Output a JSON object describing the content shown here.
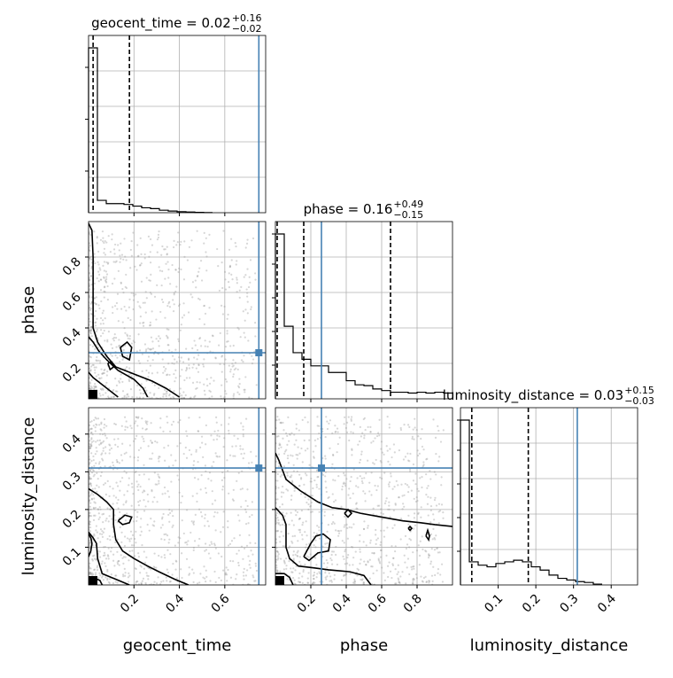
{
  "chart_data": {
    "type": "corner",
    "parameters": [
      "geocent_time",
      "phase",
      "luminosity_distance"
    ],
    "axis_labels": {
      "geocent_time": "geocent_time",
      "phase": "phase",
      "luminosity_distance": "luminosity_distance"
    },
    "ranges": {
      "geocent_time": [
        0.0,
        0.78
      ],
      "phase": [
        0.0,
        1.0
      ],
      "luminosity_distance": [
        0.0,
        0.47
      ]
    },
    "ticks": {
      "geocent_time": [
        0.2,
        0.4,
        0.6
      ],
      "phase": [
        0.2,
        0.4,
        0.6,
        0.8
      ],
      "luminosity_distance": [
        0.1,
        0.2,
        0.3,
        0.4
      ]
    },
    "tick_labels": {
      "geocent_time": [
        "0.2",
        "0.4",
        "0.6"
      ],
      "phase": [
        "0.2",
        "0.4",
        "0.6",
        "0.8"
      ],
      "luminosity_distance": [
        "0.1",
        "0.2",
        "0.3",
        "0.4"
      ]
    },
    "truths": {
      "geocent_time": 0.75,
      "phase": 0.26,
      "luminosity_distance": 0.31
    },
    "titles": [
      {
        "param": "geocent_time",
        "text": "geocent_time = 0.02",
        "sup": "+0.16",
        "sub": "−0.02"
      },
      {
        "param": "phase",
        "text": "phase = 0.16",
        "sup": "+0.49",
        "sub": "−0.15"
      },
      {
        "param": "luminosity_distance",
        "text": "luminosity_distance = 0.03",
        "sup": "+0.15",
        "sub": "−0.03"
      }
    ],
    "quantiles": {
      "geocent_time": [
        0.02,
        0.18
      ],
      "phase": [
        0.01,
        0.16,
        0.65
      ],
      "luminosity_distance": [
        0.03,
        0.18
      ]
    },
    "histograms": {
      "geocent_time": {
        "edges": [
          0.0,
          0.039,
          0.078,
          0.117,
          0.156,
          0.195,
          0.234,
          0.273,
          0.312,
          0.351,
          0.39,
          0.429,
          0.468,
          0.507,
          0.546
        ],
        "counts": [
          100,
          7.5,
          5.5,
          5.5,
          5,
          4,
          3,
          2.5,
          1.5,
          1,
          0.6,
          0.4,
          0.2,
          0.1
        ]
      },
      "phase": {
        "edges": [
          0.0,
          0.05,
          0.1,
          0.15,
          0.2,
          0.25,
          0.3,
          0.35,
          0.4,
          0.45,
          0.5,
          0.55,
          0.6,
          0.65,
          0.7,
          0.75,
          0.8,
          0.85,
          0.9,
          0.95,
          1.0
        ],
        "counts": [
          100,
          44,
          28,
          24,
          20,
          20,
          16,
          16,
          11,
          8.5,
          8,
          6,
          5,
          4,
          4,
          3.5,
          4,
          3.5,
          4,
          3.5
        ]
      },
      "luminosity_distance": {
        "edges": [
          0.0,
          0.0235,
          0.047,
          0.0705,
          0.094,
          0.1175,
          0.141,
          0.1645,
          0.188,
          0.2115,
          0.235,
          0.2585,
          0.282,
          0.3055,
          0.329,
          0.3525,
          0.376
        ],
        "counts": [
          100,
          14,
          12,
          11,
          13,
          14,
          15,
          14,
          11,
          9,
          6,
          4,
          3,
          2,
          1.5,
          0.5
        ]
      }
    },
    "contours": {
      "geocent_time|phase": [
        [
          [
            0.0,
            0.99
          ],
          [
            0.015,
            0.95
          ],
          [
            0.02,
            0.8
          ],
          [
            0.02,
            0.55
          ],
          [
            0.02,
            0.4
          ],
          [
            0.04,
            0.32
          ],
          [
            0.08,
            0.24
          ],
          [
            0.12,
            0.18
          ],
          [
            0.2,
            0.14
          ],
          [
            0.28,
            0.1
          ],
          [
            0.34,
            0.06
          ],
          [
            0.4,
            0.01
          ]
        ],
        [
          [
            0.0,
            0.35
          ],
          [
            0.02,
            0.32
          ],
          [
            0.045,
            0.27
          ],
          [
            0.08,
            0.22
          ],
          [
            0.13,
            0.16
          ],
          [
            0.2,
            0.11
          ],
          [
            0.24,
            0.06
          ],
          [
            0.26,
            0.01
          ]
        ],
        [
          [
            0.0,
            0.15
          ],
          [
            0.02,
            0.12
          ],
          [
            0.05,
            0.09
          ],
          [
            0.08,
            0.06
          ],
          [
            0.11,
            0.03
          ],
          [
            0.13,
            0.01
          ]
        ],
        [
          [
            0.14,
            0.29
          ],
          [
            0.17,
            0.32
          ],
          [
            0.19,
            0.29
          ],
          [
            0.18,
            0.22
          ],
          [
            0.15,
            0.24
          ],
          [
            0.14,
            0.29
          ]
        ],
        [
          [
            0.085,
            0.2
          ],
          [
            0.1,
            0.21
          ],
          [
            0.11,
            0.18
          ],
          [
            0.095,
            0.165
          ],
          [
            0.085,
            0.2
          ]
        ]
      ],
      "geocent_time|luminosity_distance": [
        [
          [
            0.0,
            0.255
          ],
          [
            0.04,
            0.24
          ],
          [
            0.08,
            0.22
          ],
          [
            0.11,
            0.2
          ],
          [
            0.11,
            0.16
          ],
          [
            0.12,
            0.12
          ],
          [
            0.15,
            0.09
          ],
          [
            0.2,
            0.07
          ],
          [
            0.26,
            0.05
          ],
          [
            0.31,
            0.035
          ],
          [
            0.38,
            0.015
          ],
          [
            0.44,
            0.0
          ]
        ],
        [
          [
            0.0,
            0.14
          ],
          [
            0.02,
            0.125
          ],
          [
            0.035,
            0.11
          ],
          [
            0.04,
            0.07
          ],
          [
            0.06,
            0.03
          ],
          [
            0.1,
            0.02
          ],
          [
            0.18,
            0.0
          ]
        ],
        [
          [
            0.0,
            0.018
          ],
          [
            0.03,
            0.017
          ],
          [
            0.05,
            0.012
          ],
          [
            0.06,
            0.0
          ]
        ],
        [
          [
            0.0,
            0.075
          ],
          [
            0.01,
            0.09
          ],
          [
            0.015,
            0.11
          ],
          [
            0.01,
            0.125
          ],
          [
            0.0,
            0.135
          ]
        ],
        [
          [
            0.13,
            0.17
          ],
          [
            0.16,
            0.185
          ],
          [
            0.19,
            0.18
          ],
          [
            0.18,
            0.165
          ],
          [
            0.15,
            0.16
          ],
          [
            0.13,
            0.17
          ]
        ]
      ],
      "phase|luminosity_distance": [
        [
          [
            0.0,
            0.35
          ],
          [
            0.02,
            0.33
          ],
          [
            0.06,
            0.28
          ],
          [
            0.14,
            0.25
          ],
          [
            0.24,
            0.22
          ],
          [
            0.32,
            0.205
          ],
          [
            0.4,
            0.2
          ],
          [
            0.48,
            0.19
          ],
          [
            0.6,
            0.18
          ],
          [
            0.72,
            0.17
          ],
          [
            0.82,
            0.165
          ],
          [
            0.9,
            0.16
          ],
          [
            1.0,
            0.155
          ]
        ],
        [
          [
            0.0,
            0.205
          ],
          [
            0.04,
            0.185
          ],
          [
            0.06,
            0.16
          ],
          [
            0.06,
            0.1
          ],
          [
            0.08,
            0.07
          ],
          [
            0.13,
            0.05
          ],
          [
            0.22,
            0.045
          ],
          [
            0.3,
            0.04
          ],
          [
            0.42,
            0.035
          ],
          [
            0.5,
            0.025
          ],
          [
            0.54,
            0.0
          ]
        ],
        [
          [
            0.0,
            0.03
          ],
          [
            0.05,
            0.03
          ],
          [
            0.08,
            0.02
          ],
          [
            0.1,
            0.0
          ]
        ],
        [
          [
            0.16,
            0.075
          ],
          [
            0.2,
            0.11
          ],
          [
            0.23,
            0.13
          ],
          [
            0.27,
            0.135
          ],
          [
            0.31,
            0.12
          ],
          [
            0.3,
            0.09
          ],
          [
            0.24,
            0.085
          ],
          [
            0.19,
            0.065
          ],
          [
            0.16,
            0.075
          ]
        ],
        [
          [
            0.39,
            0.19
          ],
          [
            0.41,
            0.2
          ],
          [
            0.43,
            0.19
          ],
          [
            0.41,
            0.18
          ],
          [
            0.39,
            0.19
          ]
        ],
        [
          [
            0.75,
            0.15
          ],
          [
            0.76,
            0.155
          ],
          [
            0.77,
            0.15
          ],
          [
            0.76,
            0.145
          ],
          [
            0.75,
            0.15
          ]
        ],
        [
          [
            0.85,
            0.13
          ],
          [
            0.86,
            0.145
          ],
          [
            0.87,
            0.13
          ],
          [
            0.865,
            0.12
          ],
          [
            0.85,
            0.13
          ]
        ]
      ]
    },
    "grid": true
  },
  "colors": {
    "truth": "#4682b4",
    "contour": "#000000",
    "scatter": "#9a9a9a",
    "grid": "#b0b0b0"
  }
}
